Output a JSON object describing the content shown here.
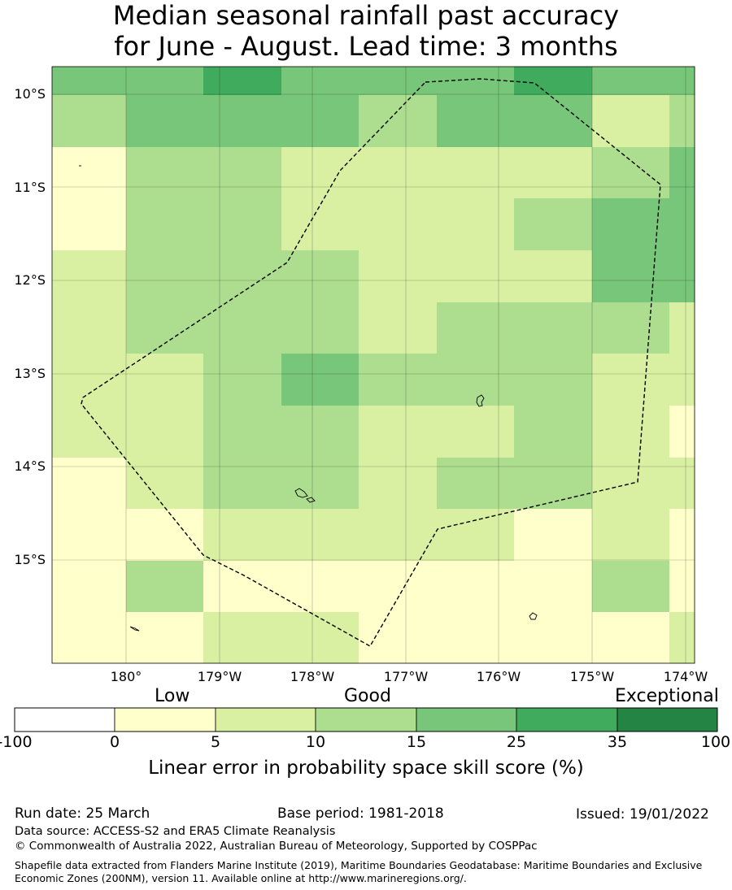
{
  "title": {
    "line1": "Median seasonal rainfall past accuracy",
    "line2": "for June - August. Lead time: 3 months"
  },
  "map": {
    "lat_labels": [
      "10°S",
      "11°S",
      "12°S",
      "13°S",
      "14°S",
      "15°S"
    ],
    "lon_labels": [
      "180°",
      "179°W",
      "178°W",
      "177°W",
      "176°W",
      "175°W",
      "174°W"
    ],
    "grid_values": [
      [
        25,
        25,
        35,
        25,
        25,
        25,
        35,
        25,
        25
      ],
      [
        15,
        25,
        25,
        25,
        15,
        25,
        25,
        5,
        15
      ],
      [
        0,
        15,
        15,
        5,
        5,
        5,
        5,
        15,
        25
      ],
      [
        0,
        15,
        15,
        5,
        5,
        5,
        15,
        25,
        25
      ],
      [
        5,
        15,
        15,
        15,
        5,
        5,
        5,
        25,
        25
      ],
      [
        5,
        15,
        15,
        15,
        5,
        15,
        15,
        15,
        5
      ],
      [
        5,
        5,
        15,
        25,
        15,
        15,
        15,
        5,
        5
      ],
      [
        5,
        5,
        15,
        15,
        5,
        5,
        15,
        5,
        0
      ],
      [
        0,
        5,
        15,
        15,
        5,
        15,
        15,
        5,
        5
      ],
      [
        0,
        0,
        5,
        5,
        5,
        5,
        0,
        5,
        0
      ],
      [
        0,
        15,
        0,
        0,
        0,
        0,
        0,
        15,
        0
      ],
      [
        0,
        0,
        5,
        5,
        0,
        0,
        0,
        0,
        5
      ]
    ],
    "colors": {
      "0": "#ffffcc",
      "5": "#d9f0a3",
      "15": "#addd8e",
      "25": "#78c679",
      "35": "#41ab5d"
    },
    "boundary": "dashed EEZ outline",
    "islands": [
      "island",
      "island",
      "island",
      "island"
    ]
  },
  "legend": {
    "low": "Low",
    "good": "Good",
    "exceptional": "Exceptional",
    "ticks": [
      "-100",
      "0",
      "5",
      "10",
      "15",
      "25",
      "35",
      "100"
    ],
    "bin_colors": [
      "#ffffff",
      "#ffffcc",
      "#d9f0a3",
      "#addd8e",
      "#78c679",
      "#41ab5d",
      "#238443"
    ],
    "axis_label": "Linear error in probability space skill score (%)"
  },
  "footer": {
    "run_date": "Run date: 25 March",
    "base_period": "Base period: 1981-2018",
    "issued": "Issued: 19/01/2022",
    "data_source": "Data source: ACCESS-S2 and ERA5 Climate Reanalysis",
    "copyright": "© Commonwealth of Australia 2022, Australian Bureau of Meteorology, Supported by COSPPac",
    "shapefile": "Shapefile data extracted from Flanders Marine Institute (2019), Maritime Boundaries Geodatabase: Maritime Boundaries and Exclusive Economic Zones (200NM), version 11. Available online at http://www.marineregions.org/."
  }
}
